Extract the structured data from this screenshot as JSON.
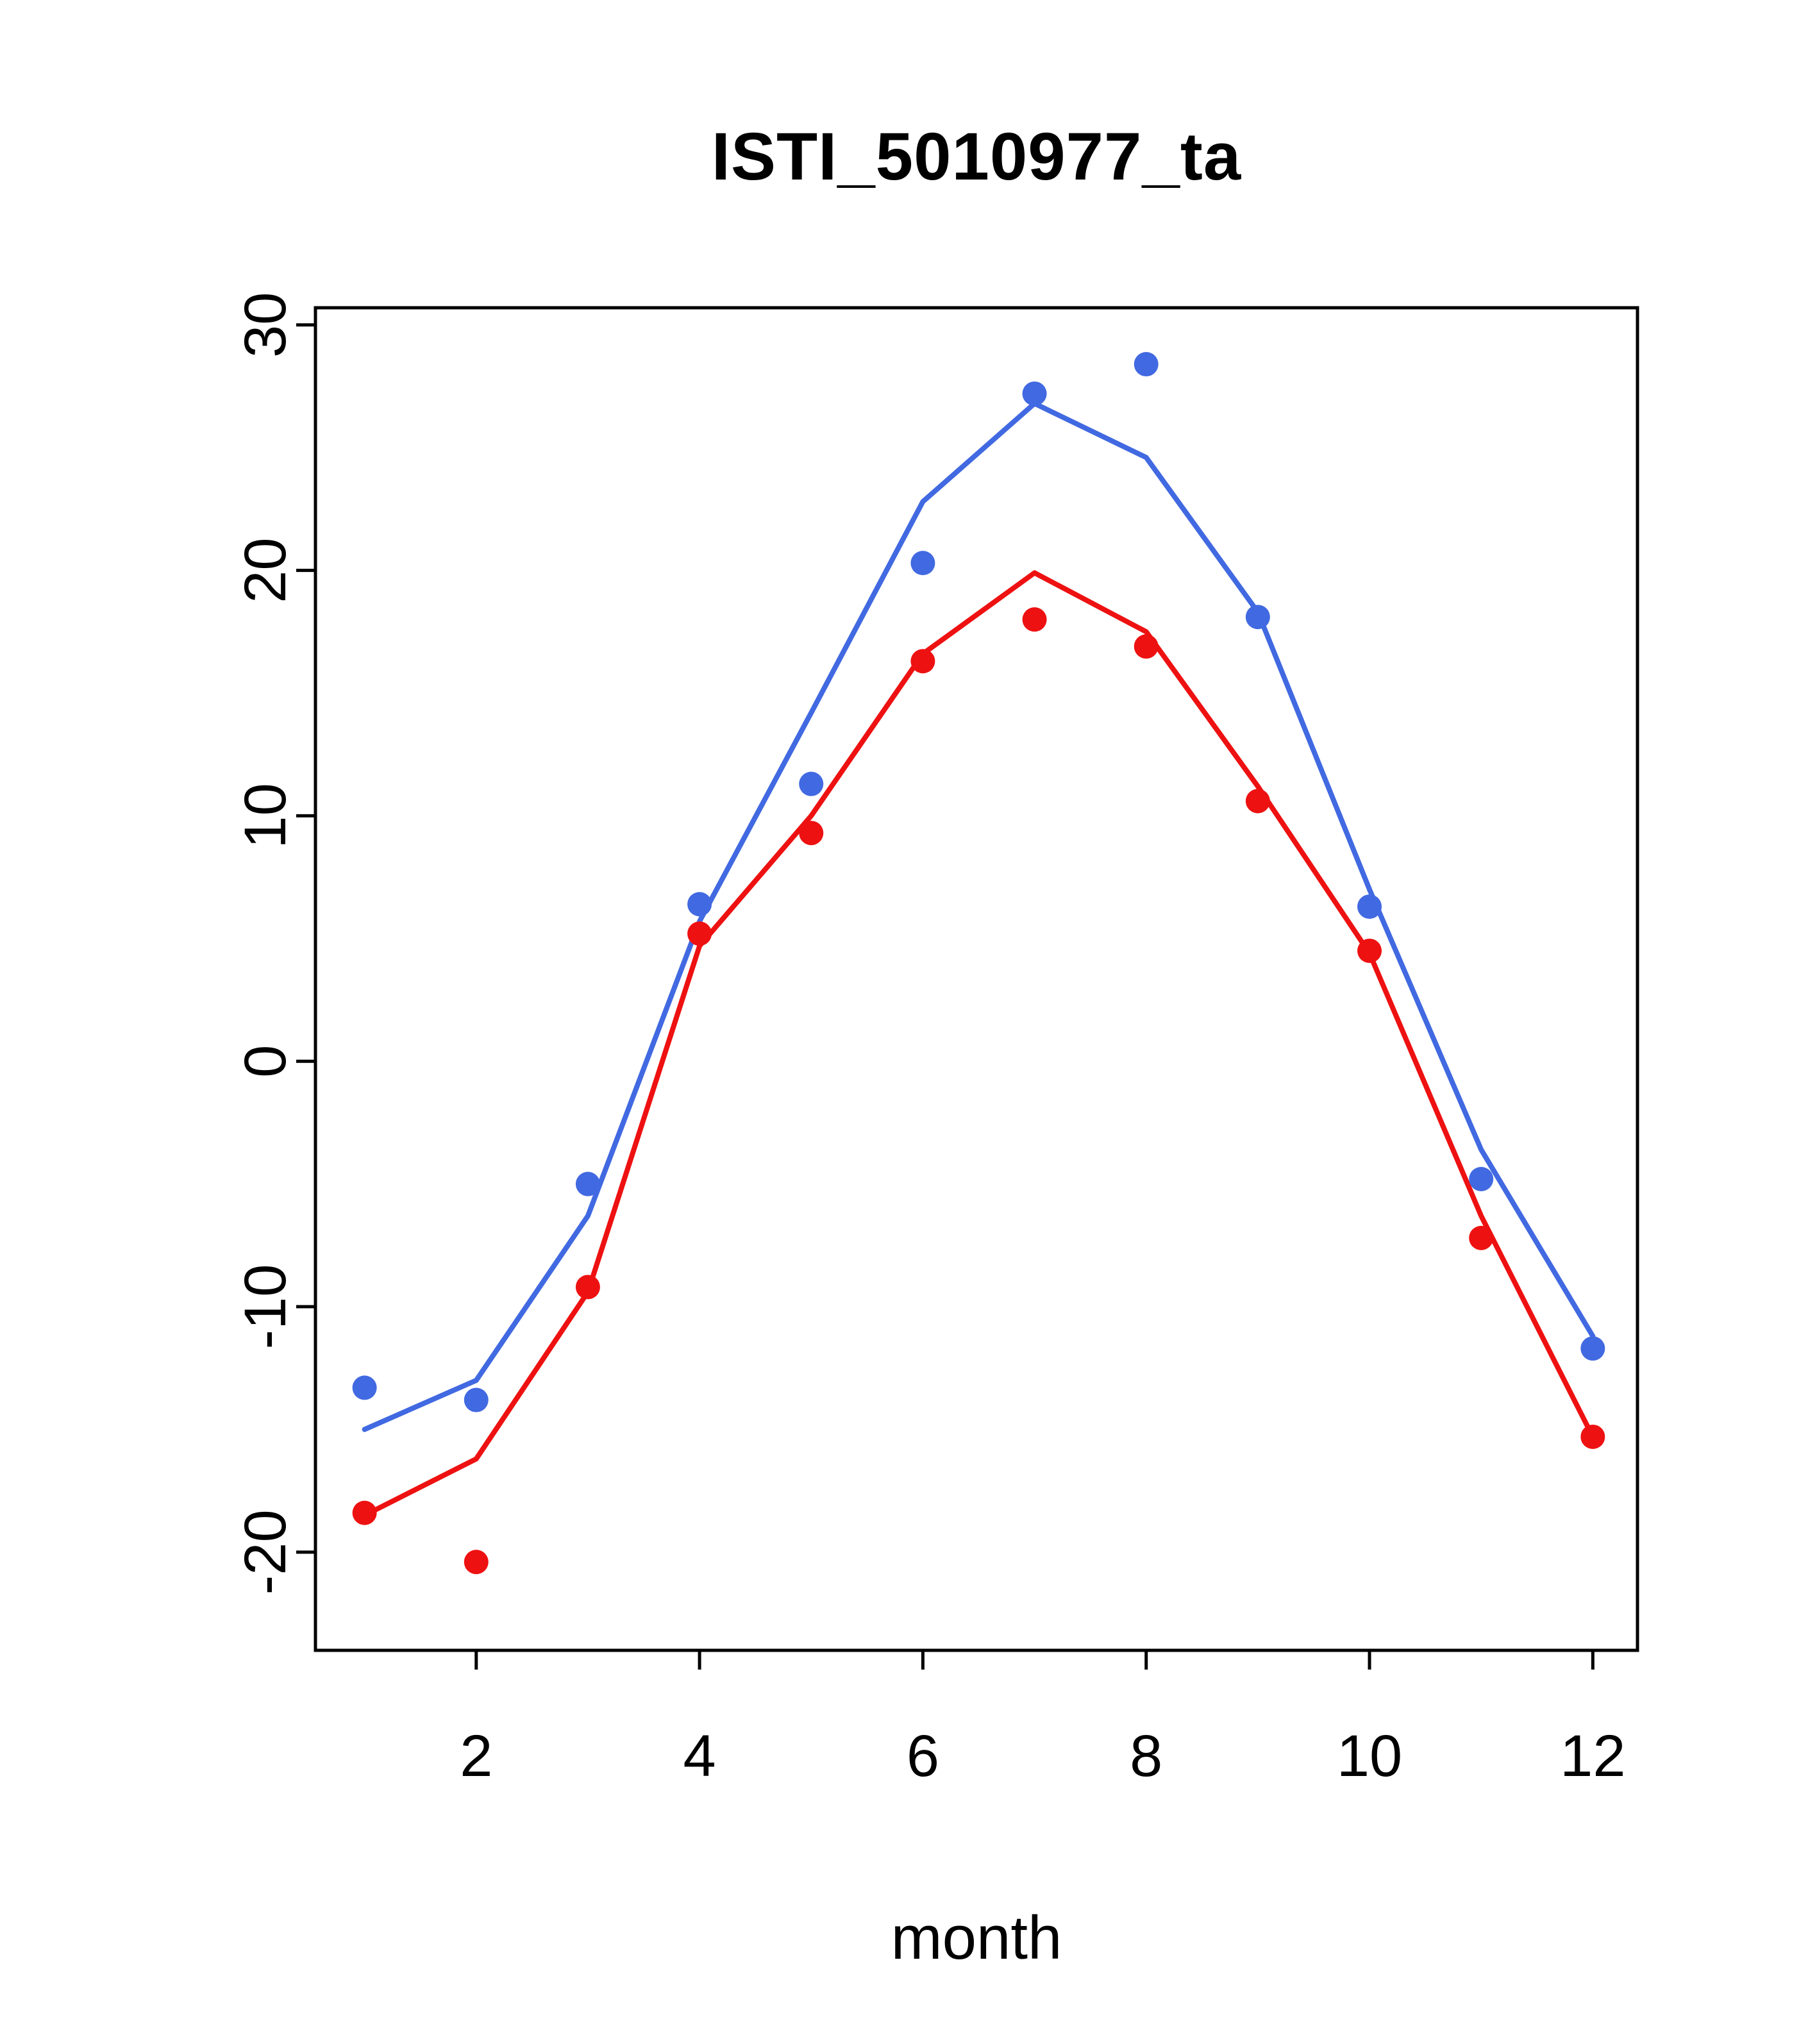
{
  "chart_data": {
    "type": "scatter",
    "title": "ISTI_5010977_ta",
    "xlabel": "month",
    "ylabel": "",
    "x": [
      1,
      2,
      3,
      4,
      5,
      6,
      7,
      8,
      9,
      10,
      11,
      12
    ],
    "series": [
      {
        "name": "blue-line",
        "style": "line",
        "color": "#4169e1",
        "values": [
          -15.0,
          -13.0,
          -6.3,
          5.7,
          14.2,
          22.8,
          26.8,
          24.6,
          18.3,
          7.0,
          -3.6,
          -11.2
        ]
      },
      {
        "name": "red-line",
        "style": "line",
        "color": "#ee1111",
        "values": [
          -18.5,
          -16.2,
          -9.4,
          4.7,
          10.0,
          16.6,
          19.9,
          17.5,
          11.2,
          4.4,
          -6.3,
          -15.3
        ]
      },
      {
        "name": "blue-points",
        "style": "points",
        "color": "#4169e1",
        "values": [
          -13.3,
          -13.8,
          -5.0,
          6.4,
          11.3,
          20.3,
          27.2,
          28.4,
          18.1,
          6.3,
          -4.8,
          -11.7
        ]
      },
      {
        "name": "red-points",
        "style": "points",
        "color": "#ee1111",
        "values": [
          -18.4,
          -20.4,
          -9.2,
          5.2,
          9.3,
          16.3,
          18.0,
          16.9,
          10.6,
          4.5,
          -7.2,
          -15.3
        ]
      }
    ],
    "xticks": [
      2,
      4,
      6,
      8,
      10,
      12
    ],
    "yticks": [
      -20,
      -10,
      0,
      10,
      20,
      30
    ],
    "xlim": [
      0.56,
      12.4
    ],
    "ylim": [
      -24.0,
      30.7
    ],
    "grid": false,
    "legend": null,
    "axis_color": "#000000",
    "background": "#ffffff"
  }
}
